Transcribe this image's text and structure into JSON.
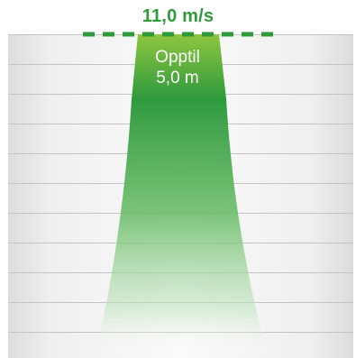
{
  "speed_label": "11,0 m/s",
  "range_label": {
    "line1": "Opptil",
    "line2": "5,0 m"
  },
  "colors": {
    "accent_green": "#2f9a38",
    "beam_top": "#8ec63f",
    "beam_mid": "#2e9a3e",
    "label_text": "#ffffff",
    "grid_line": "#c4c4c4"
  }
}
